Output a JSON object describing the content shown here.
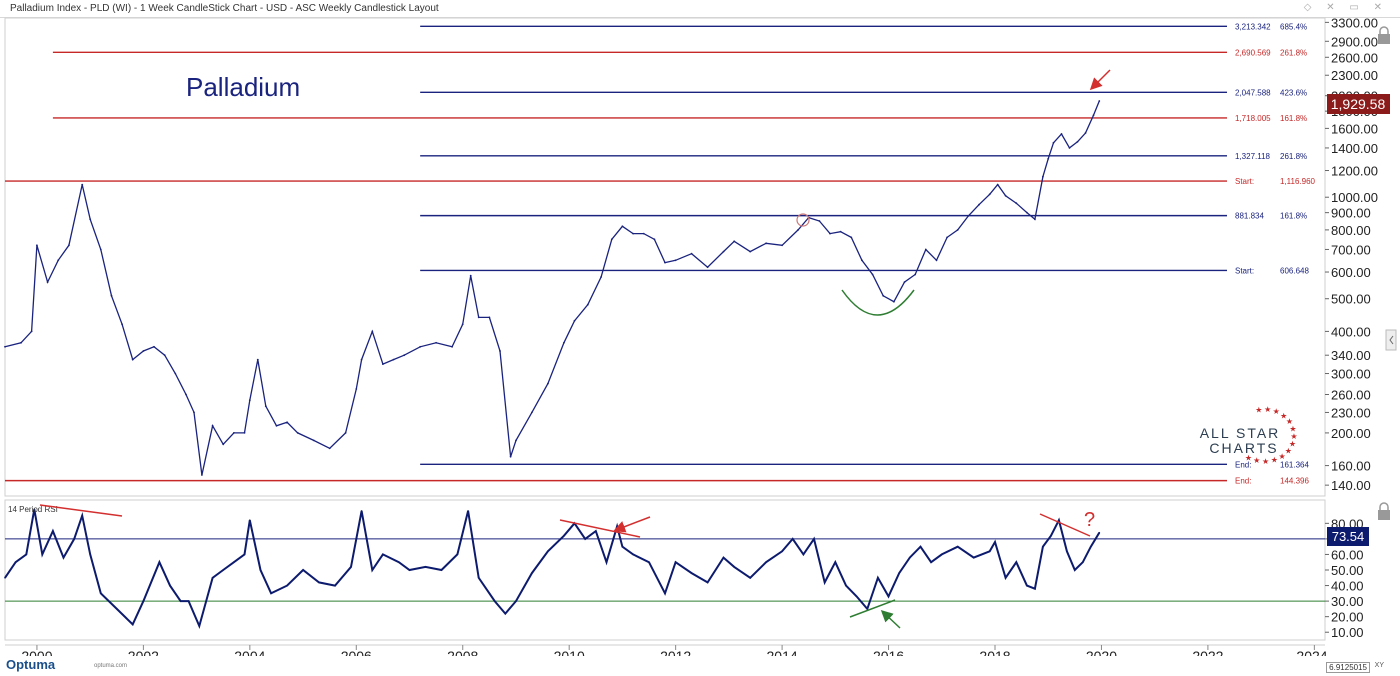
{
  "header": {
    "title": "Palladium Index - PLD (WI) - 1 Week CandleStick Chart - USD - ASC Weekly Candlestick Layout"
  },
  "chart_data": {
    "type": "line",
    "title": "Palladium",
    "price_scale": "log",
    "ylim": [
      130,
      3400
    ],
    "xlim": [
      1999.4,
      2024.2
    ],
    "y_ticks": [
      {
        "v": 3300,
        "label": "3300.00"
      },
      {
        "v": 2900,
        "label": "2900.00"
      },
      {
        "v": 2600,
        "label": "2600.00"
      },
      {
        "v": 2300,
        "label": "2300.00"
      },
      {
        "v": 2000,
        "label": "2000.00"
      },
      {
        "v": 1800,
        "label": "1800.00"
      },
      {
        "v": 1600,
        "label": "1600.00"
      },
      {
        "v": 1400,
        "label": "1400.00"
      },
      {
        "v": 1200,
        "label": "1200.00"
      },
      {
        "v": 1000,
        "label": "1000.00"
      },
      {
        "v": 900,
        "label": "900.00"
      },
      {
        "v": 800,
        "label": "800.00"
      },
      {
        "v": 700,
        "label": "700.00"
      },
      {
        "v": 600,
        "label": "600.00"
      },
      {
        "v": 500,
        "label": "500.00"
      },
      {
        "v": 400,
        "label": "400.00"
      },
      {
        "v": 340,
        "label": "340.00"
      },
      {
        "v": 300,
        "label": "300.00"
      },
      {
        "v": 260,
        "label": "260.00"
      },
      {
        "v": 230,
        "label": "230.00"
      },
      {
        "v": 200,
        "label": "200.00"
      },
      {
        "v": 160,
        "label": "160.00"
      },
      {
        "v": 140,
        "label": "140.00"
      }
    ],
    "x_ticks": [
      {
        "v": 2000,
        "label": "2000"
      },
      {
        "v": 2002,
        "label": "2002"
      },
      {
        "v": 2004,
        "label": "2004"
      },
      {
        "v": 2006,
        "label": "2006"
      },
      {
        "v": 2008,
        "label": "2008"
      },
      {
        "v": 2010,
        "label": "2010"
      },
      {
        "v": 2012,
        "label": "2012"
      },
      {
        "v": 2014,
        "label": "2014"
      },
      {
        "v": 2016,
        "label": "2016"
      },
      {
        "v": 2018,
        "label": "2018"
      },
      {
        "v": 2020,
        "label": "2020"
      },
      {
        "v": 2022,
        "label": "2022"
      },
      {
        "v": 2024,
        "label": "2024"
      }
    ],
    "series": [
      {
        "values": [
          [
            1999.4,
            360
          ],
          [
            1999.7,
            370
          ],
          [
            1999.9,
            400
          ],
          [
            2000.0,
            720
          ],
          [
            2000.2,
            560
          ],
          [
            2000.4,
            650
          ],
          [
            2000.6,
            720
          ],
          [
            2000.85,
            1090
          ],
          [
            2001.0,
            860
          ],
          [
            2001.2,
            700
          ],
          [
            2001.4,
            510
          ],
          [
            2001.6,
            420
          ],
          [
            2001.8,
            330
          ],
          [
            2002.0,
            350
          ],
          [
            2002.2,
            360
          ],
          [
            2002.4,
            340
          ],
          [
            2002.6,
            300
          ],
          [
            2002.8,
            260
          ],
          [
            2002.95,
            230
          ],
          [
            2003.1,
            150
          ],
          [
            2003.3,
            210
          ],
          [
            2003.5,
            185
          ],
          [
            2003.7,
            200
          ],
          [
            2003.9,
            200
          ],
          [
            2004.0,
            250
          ],
          [
            2004.15,
            330
          ],
          [
            2004.3,
            240
          ],
          [
            2004.5,
            210
          ],
          [
            2004.7,
            215
          ],
          [
            2004.9,
            200
          ],
          [
            2005.2,
            190
          ],
          [
            2005.5,
            180
          ],
          [
            2005.8,
            200
          ],
          [
            2006.0,
            270
          ],
          [
            2006.1,
            330
          ],
          [
            2006.3,
            400
          ],
          [
            2006.5,
            320
          ],
          [
            2006.7,
            330
          ],
          [
            2006.9,
            340
          ],
          [
            2007.2,
            360
          ],
          [
            2007.5,
            370
          ],
          [
            2007.8,
            360
          ],
          [
            2008.0,
            420
          ],
          [
            2008.15,
            585
          ],
          [
            2008.3,
            440
          ],
          [
            2008.5,
            440
          ],
          [
            2008.7,
            350
          ],
          [
            2008.9,
            170
          ],
          [
            2009.0,
            190
          ],
          [
            2009.3,
            230
          ],
          [
            2009.6,
            280
          ],
          [
            2009.9,
            370
          ],
          [
            2010.1,
            430
          ],
          [
            2010.35,
            480
          ],
          [
            2010.6,
            580
          ],
          [
            2010.8,
            750
          ],
          [
            2011.0,
            820
          ],
          [
            2011.2,
            780
          ],
          [
            2011.4,
            780
          ],
          [
            2011.6,
            750
          ],
          [
            2011.8,
            640
          ],
          [
            2012.0,
            650
          ],
          [
            2012.3,
            680
          ],
          [
            2012.6,
            620
          ],
          [
            2012.9,
            690
          ],
          [
            2013.1,
            740
          ],
          [
            2013.4,
            690
          ],
          [
            2013.7,
            730
          ],
          [
            2014.0,
            720
          ],
          [
            2014.3,
            800
          ],
          [
            2014.5,
            870
          ],
          [
            2014.7,
            850
          ],
          [
            2014.9,
            780
          ],
          [
            2015.1,
            790
          ],
          [
            2015.3,
            760
          ],
          [
            2015.5,
            650
          ],
          [
            2015.7,
            590
          ],
          [
            2015.9,
            510
          ],
          [
            2016.1,
            490
          ],
          [
            2016.3,
            560
          ],
          [
            2016.5,
            590
          ],
          [
            2016.7,
            700
          ],
          [
            2016.9,
            650
          ],
          [
            2017.1,
            760
          ],
          [
            2017.3,
            800
          ],
          [
            2017.5,
            880
          ],
          [
            2017.7,
            950
          ],
          [
            2017.9,
            1020
          ],
          [
            2018.05,
            1090
          ],
          [
            2018.2,
            1010
          ],
          [
            2018.4,
            960
          ],
          [
            2018.6,
            900
          ],
          [
            2018.75,
            860
          ],
          [
            2018.9,
            1150
          ],
          [
            2019.0,
            1300
          ],
          [
            2019.1,
            1450
          ],
          [
            2019.25,
            1540
          ],
          [
            2019.4,
            1400
          ],
          [
            2019.55,
            1460
          ],
          [
            2019.7,
            1550
          ],
          [
            2019.85,
            1750
          ],
          [
            2019.96,
            1929
          ]
        ]
      }
    ],
    "levels": [
      {
        "v": 3213.342,
        "price_label": "3,213.342",
        "pct_label": "685.4%",
        "color": "#1a237e",
        "x_from": 2007.2
      },
      {
        "v": 2690.569,
        "price_label": "2,690.569",
        "pct_label": "261.8%",
        "color": "#c62828",
        "x_from": 2000.3
      },
      {
        "v": 2047.588,
        "price_label": "2,047.588",
        "pct_label": "423.6%",
        "color": "#1a237e",
        "x_from": 2007.2
      },
      {
        "v": 1718.005,
        "price_label": "1,718.005",
        "pct_label": "161.8%",
        "color": "#c62828",
        "x_from": 2000.3
      },
      {
        "v": 1327.118,
        "price_label": "1,327.118",
        "pct_label": "261.8%",
        "color": "#1a237e",
        "x_from": 2007.2
      },
      {
        "v": 1116.96,
        "price_label": "Start:",
        "pct_label": "1,116.960",
        "color": "#c62828",
        "x_from": 1999.4
      },
      {
        "v": 881.834,
        "price_label": "881.834",
        "pct_label": "161.8%",
        "color": "#1a237e",
        "x_from": 2007.2
      },
      {
        "v": 606.648,
        "price_label": "Start:",
        "pct_label": "606.648",
        "color": "#1a237e",
        "x_from": 2007.2
      },
      {
        "v": 161.364,
        "price_label": "End:",
        "pct_label": "161.364",
        "color": "#1a237e",
        "x_from": 2007.2
      },
      {
        "v": 144.396,
        "price_label": "End:",
        "pct_label": "144.396",
        "color": "#c62828",
        "x_from": 1999.4
      }
    ],
    "last_price": {
      "v": 1929.58,
      "label": "1,929.58",
      "color": "#8b1a1a"
    },
    "rsi": {
      "label": "14 Period RSI",
      "ylim": [
        5,
        95
      ],
      "overbought": 70,
      "oversold": 30,
      "y_ticks": [
        {
          "v": 80,
          "label": "80.00"
        },
        {
          "v": 70,
          "label": "70.00"
        },
        {
          "v": 60,
          "label": "60.00"
        },
        {
          "v": 50,
          "label": "50.00"
        },
        {
          "v": 40,
          "label": "40.00"
        },
        {
          "v": 30,
          "label": "30.00"
        },
        {
          "v": 20,
          "label": "20.00"
        },
        {
          "v": 10,
          "label": "10.00"
        }
      ],
      "last": {
        "v": 73.54,
        "label": "73.54"
      },
      "values": [
        [
          1999.4,
          45
        ],
        [
          1999.6,
          55
        ],
        [
          1999.8,
          60
        ],
        [
          1999.95,
          89
        ],
        [
          2000.1,
          60
        ],
        [
          2000.3,
          75
        ],
        [
          2000.5,
          58
        ],
        [
          2000.7,
          70
        ],
        [
          2000.85,
          85
        ],
        [
          2001.0,
          60
        ],
        [
          2001.2,
          35
        ],
        [
          2001.5,
          25
        ],
        [
          2001.8,
          15
        ],
        [
          2002.0,
          30
        ],
        [
          2002.3,
          55
        ],
        [
          2002.5,
          40
        ],
        [
          2002.7,
          30
        ],
        [
          2002.85,
          30
        ],
        [
          2003.05,
          14
        ],
        [
          2003.3,
          45
        ],
        [
          2003.5,
          50
        ],
        [
          2003.7,
          55
        ],
        [
          2003.9,
          60
        ],
        [
          2004.0,
          82
        ],
        [
          2004.2,
          50
        ],
        [
          2004.4,
          35
        ],
        [
          2004.7,
          40
        ],
        [
          2005.0,
          50
        ],
        [
          2005.3,
          42
        ],
        [
          2005.6,
          40
        ],
        [
          2005.9,
          52
        ],
        [
          2006.1,
          88
        ],
        [
          2006.3,
          50
        ],
        [
          2006.5,
          60
        ],
        [
          2006.8,
          55
        ],
        [
          2007.0,
          50
        ],
        [
          2007.3,
          52
        ],
        [
          2007.6,
          50
        ],
        [
          2007.9,
          60
        ],
        [
          2008.1,
          88
        ],
        [
          2008.3,
          45
        ],
        [
          2008.6,
          30
        ],
        [
          2008.8,
          22
        ],
        [
          2009.0,
          30
        ],
        [
          2009.3,
          48
        ],
        [
          2009.6,
          62
        ],
        [
          2009.9,
          72
        ],
        [
          2010.1,
          80
        ],
        [
          2010.3,
          70
        ],
        [
          2010.5,
          75
        ],
        [
          2010.7,
          55
        ],
        [
          2010.9,
          78
        ],
        [
          2011.0,
          65
        ],
        [
          2011.2,
          60
        ],
        [
          2011.5,
          55
        ],
        [
          2011.8,
          35
        ],
        [
          2012.0,
          55
        ],
        [
          2012.3,
          48
        ],
        [
          2012.6,
          42
        ],
        [
          2012.9,
          58
        ],
        [
          2013.1,
          52
        ],
        [
          2013.4,
          45
        ],
        [
          2013.7,
          55
        ],
        [
          2014.0,
          62
        ],
        [
          2014.2,
          70
        ],
        [
          2014.4,
          60
        ],
        [
          2014.6,
          70
        ],
        [
          2014.8,
          42
        ],
        [
          2015.0,
          55
        ],
        [
          2015.2,
          40
        ],
        [
          2015.4,
          33
        ],
        [
          2015.6,
          25
        ],
        [
          2015.8,
          45
        ],
        [
          2016.0,
          33
        ],
        [
          2016.2,
          48
        ],
        [
          2016.4,
          58
        ],
        [
          2016.6,
          65
        ],
        [
          2016.8,
          55
        ],
        [
          2017.0,
          60
        ],
        [
          2017.3,
          65
        ],
        [
          2017.6,
          58
        ],
        [
          2017.9,
          62
        ],
        [
          2018.0,
          68
        ],
        [
          2018.2,
          45
        ],
        [
          2018.4,
          55
        ],
        [
          2018.6,
          40
        ],
        [
          2018.75,
          38
        ],
        [
          2018.9,
          65
        ],
        [
          2019.05,
          72
        ],
        [
          2019.2,
          82
        ],
        [
          2019.35,
          62
        ],
        [
          2019.5,
          50
        ],
        [
          2019.65,
          55
        ],
        [
          2019.8,
          65
        ],
        [
          2019.96,
          74
        ]
      ]
    },
    "annotations": {
      "question_mark": "?"
    }
  },
  "watermark": {
    "line1": "ALL STAR",
    "line2": "CHARTS"
  },
  "footer": {
    "logo": "Optuma",
    "url": "optuma.com",
    "readout": "6.9125015",
    "xy": "XY"
  },
  "colors": {
    "price_line": "#1a237e",
    "rsi_line": "#0d1b6e",
    "red_level": "#c62828",
    "blue_level": "#1a237e",
    "oversold_line": "#2e7d32",
    "arrow_red": "#d32f2f",
    "arrow_green": "#2e7d32"
  }
}
